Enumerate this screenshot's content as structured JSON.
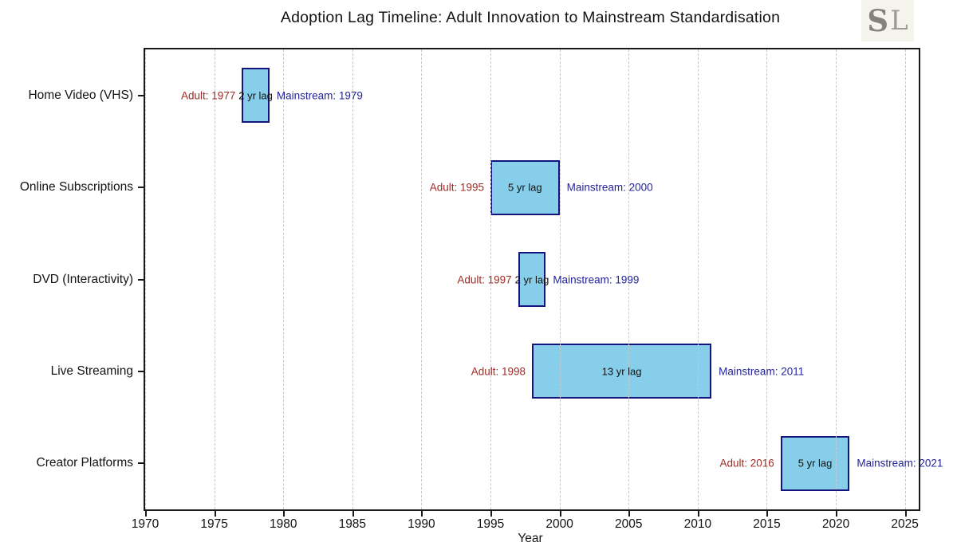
{
  "header": {
    "title": "Adoption Lag Timeline: Adult Innovation to Mainstream Standardisation",
    "logo": {
      "s": "S",
      "l": "L"
    }
  },
  "chart_data": {
    "type": "bar",
    "variant": "gantt-timeline",
    "title": "Adoption Lag Timeline: Adult Innovation to Mainstream Standardisation",
    "xlabel": "Year",
    "xlim": [
      1970,
      2026
    ],
    "xticks": [
      1970,
      1975,
      1980,
      1985,
      1990,
      1995,
      2000,
      2005,
      2010,
      2015,
      2020,
      2025
    ],
    "grid": "vertical-dashed",
    "legend": "none",
    "categories": [
      "Home Video (VHS)",
      "Online Subscriptions",
      "DVD (Interactivity)",
      "Live Streaming",
      "Creator Platforms"
    ],
    "bars": [
      {
        "category": "Home Video (VHS)",
        "start": 1977,
        "end": 1979,
        "lag": 2,
        "adult_label": "Adult: 1977",
        "lag_label": "2 yr lag",
        "mainstream_label": "Mainstream: 1979"
      },
      {
        "category": "Online Subscriptions",
        "start": 1995,
        "end": 2000,
        "lag": 5,
        "adult_label": "Adult: 1995",
        "lag_label": "5 yr lag",
        "mainstream_label": "Mainstream: 2000"
      },
      {
        "category": "DVD (Interactivity)",
        "start": 1997,
        "end": 1999,
        "lag": 2,
        "adult_label": "Adult: 1997",
        "lag_label": "2 yr lag",
        "mainstream_label": "Mainstream: 1999"
      },
      {
        "category": "Live Streaming",
        "start": 1998,
        "end": 2011,
        "lag": 13,
        "adult_label": "Adult: 1998",
        "lag_label": "13 yr lag",
        "mainstream_label": "Mainstream: 2011"
      },
      {
        "category": "Creator Platforms",
        "start": 2016,
        "end": 2021,
        "lag": 5,
        "adult_label": "Adult: 2016",
        "lag_label": "5 yr lag",
        "mainstream_label": "Mainstream: 2021"
      }
    ],
    "colors": {
      "bar_fill": "#87CEEB",
      "bar_edge": "#14147E",
      "adult_label": "#9E2B25",
      "mainstream_label": "#24249A",
      "lag_label": "#111111",
      "grid": "#C9C9C9",
      "axis": "#1A1A1A",
      "logo_bg": "#F5F4EC",
      "logo_fg": "#83837B"
    }
  }
}
